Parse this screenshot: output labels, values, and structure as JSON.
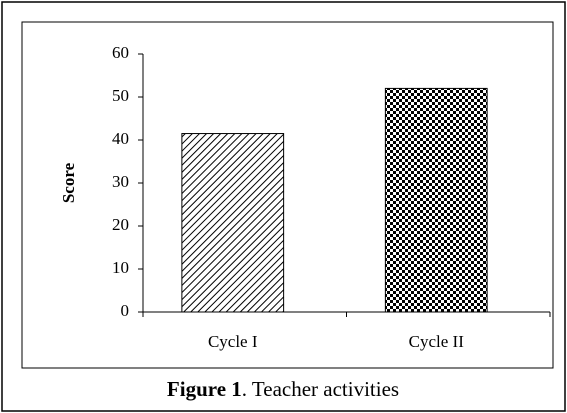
{
  "chart_data": {
    "type": "bar",
    "caption_label": "Figure 1",
    "caption_text": ". Teacher activities",
    "ylabel": "Score",
    "categories": [
      "Cycle I",
      "Cycle II"
    ],
    "values": [
      41.5,
      52
    ],
    "patterns": [
      "diagonal",
      "checker"
    ],
    "color": "#000000",
    "ylim": [
      0,
      60
    ],
    "yticks": [
      0,
      10,
      20,
      30,
      40,
      50,
      60
    ],
    "grid": false
  }
}
